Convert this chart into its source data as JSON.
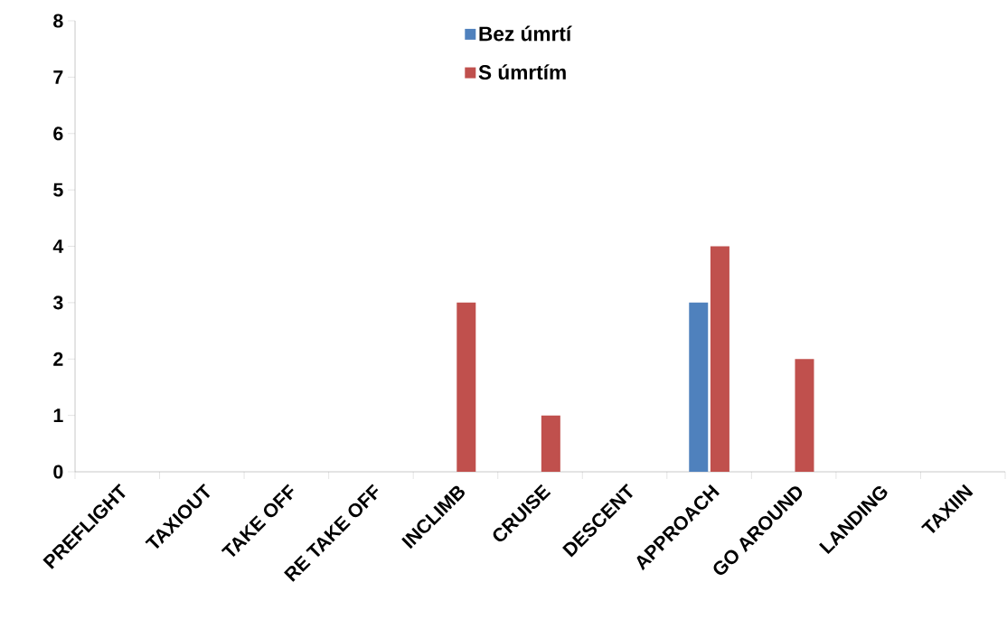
{
  "chart_data": {
    "type": "bar",
    "categories": [
      "PREFLIGHT",
      "TAXIOUT",
      "TAKE OFF",
      "RE TAKE OFF",
      "INCLIMB",
      "CRUISE",
      "DESCENT",
      "APPROACH",
      "GO AROUND",
      "LANDING",
      "TAXIIN"
    ],
    "series": [
      {
        "name": "Bez úmrtí",
        "color": "#4f81bd",
        "values": [
          0,
          0,
          0,
          0,
          0,
          0,
          0,
          3,
          0,
          0,
          0
        ]
      },
      {
        "name": "S úmrtím",
        "color": "#c0504d",
        "values": [
          0,
          0,
          0,
          0,
          3,
          1,
          0,
          4,
          2,
          0,
          0
        ]
      }
    ],
    "ylim": [
      0,
      8
    ],
    "yticks": [
      0,
      1,
      2,
      3,
      4,
      5,
      6,
      7,
      8
    ],
    "grid": false,
    "legend": "top"
  }
}
